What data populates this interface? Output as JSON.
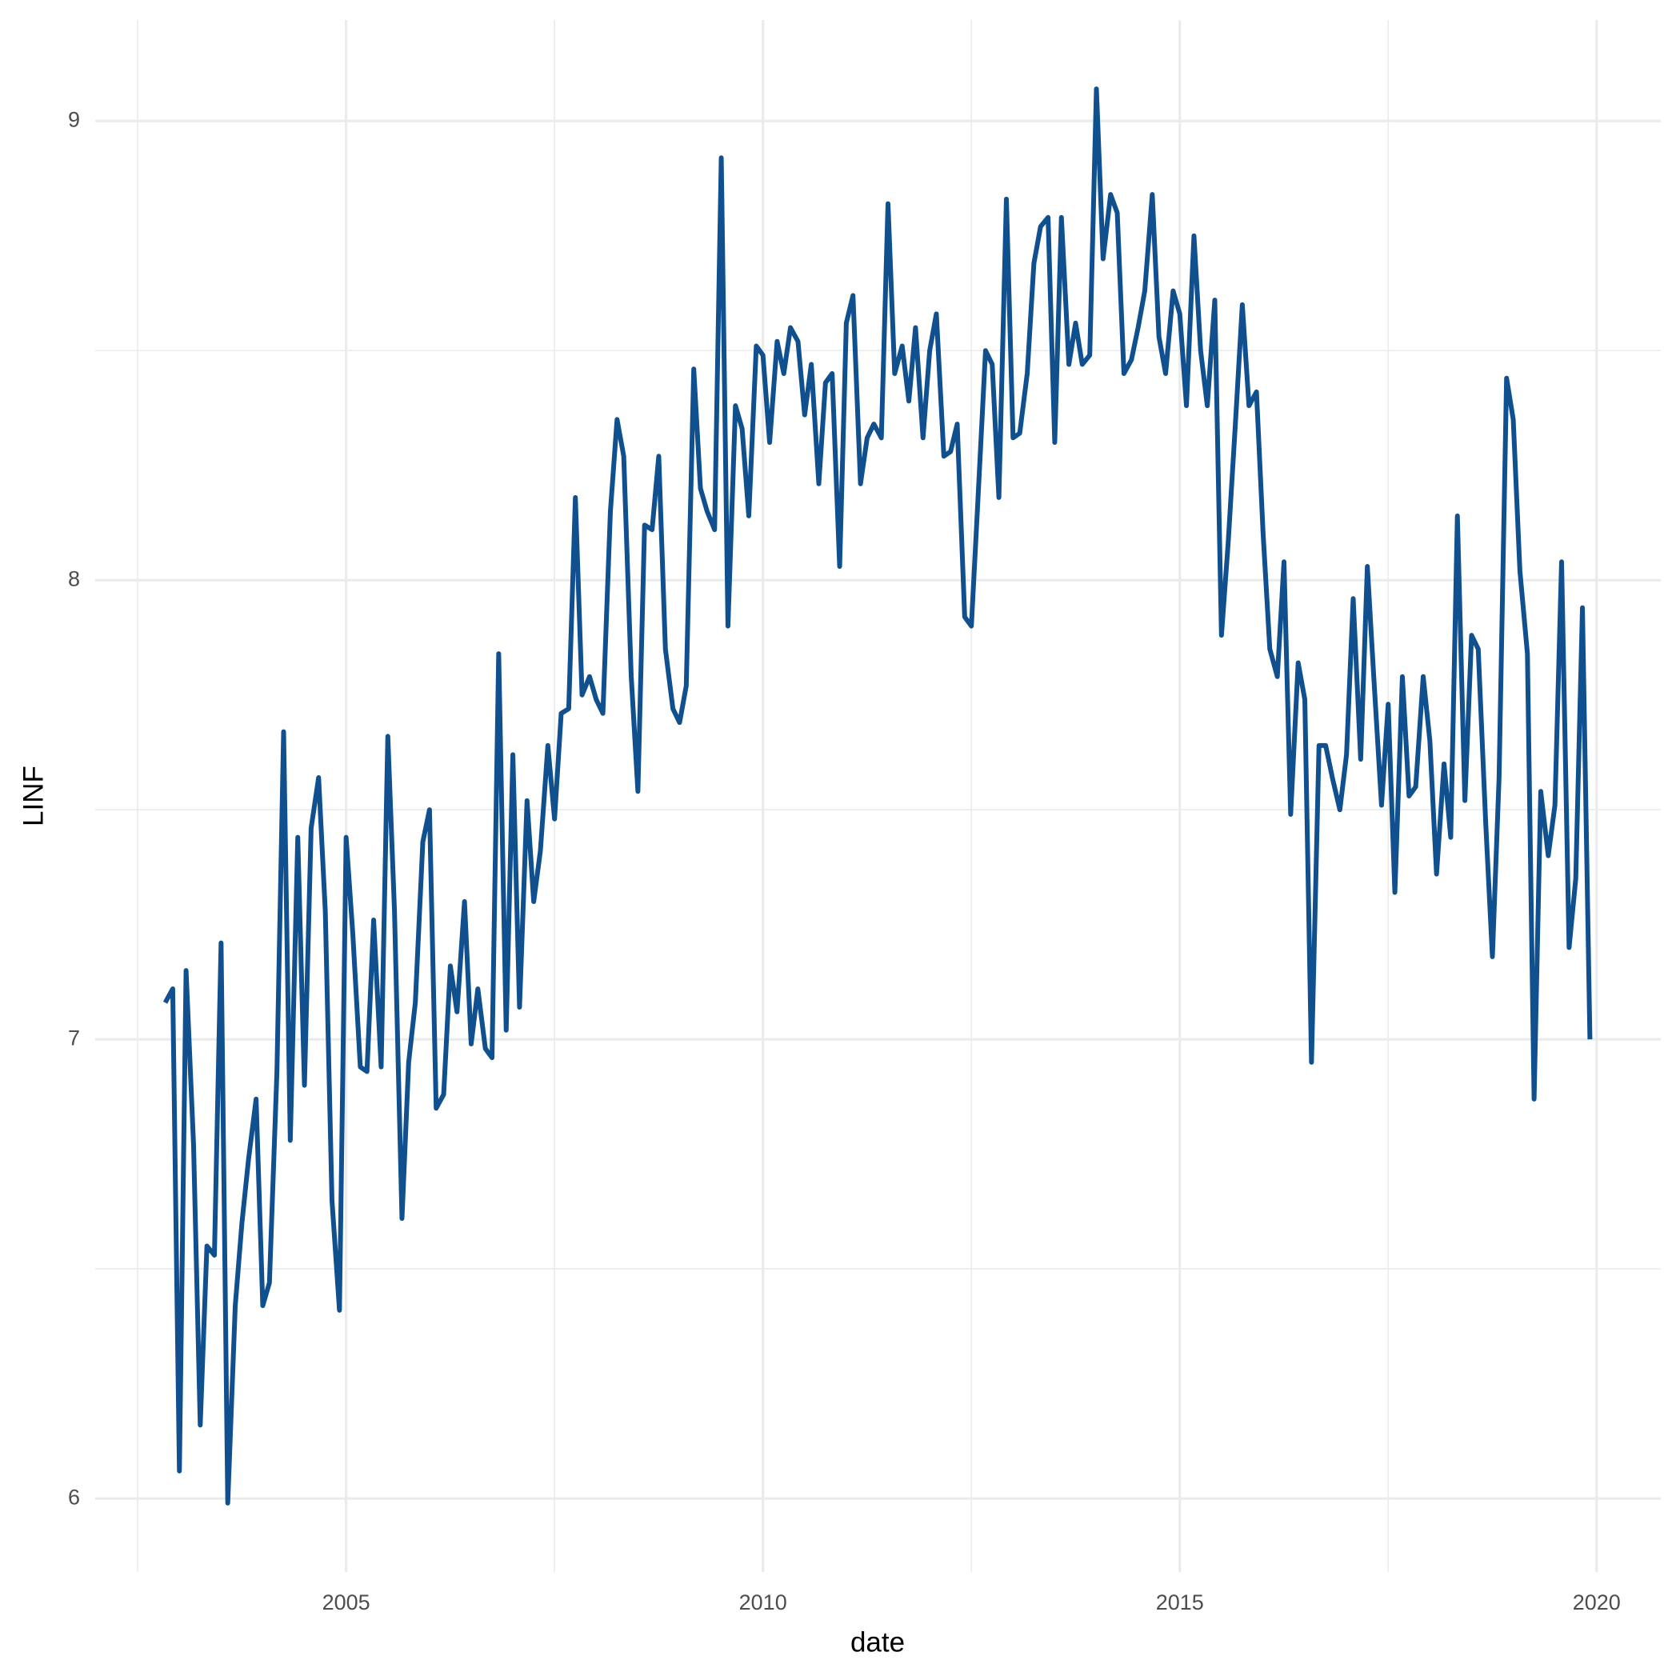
{
  "chart_data": {
    "type": "line",
    "x_label": "date",
    "y_label": "LINF",
    "color": "#10508f",
    "grid": true,
    "xlim": [
      2001.99,
      2020.77
    ],
    "ylim": [
      5.84,
      9.22
    ],
    "xticks": [
      2005,
      2010,
      2015,
      2020
    ],
    "yticks": [
      6,
      7,
      8,
      9
    ],
    "x": [
      2002.83,
      2002.92,
      2003.0,
      2003.08,
      2003.17,
      2003.25,
      2003.33,
      2003.42,
      2003.5,
      2003.58,
      2003.67,
      2003.75,
      2003.83,
      2003.92,
      2004.0,
      2004.08,
      2004.17,
      2004.25,
      2004.33,
      2004.42,
      2004.5,
      2004.58,
      2004.67,
      2004.75,
      2004.83,
      2004.92,
      2005.0,
      2005.08,
      2005.17,
      2005.25,
      2005.33,
      2005.42,
      2005.5,
      2005.58,
      2005.67,
      2005.75,
      2005.83,
      2005.92,
      2006.0,
      2006.08,
      2006.17,
      2006.25,
      2006.33,
      2006.42,
      2006.5,
      2006.58,
      2006.67,
      2006.75,
      2006.83,
      2006.92,
      2007.0,
      2007.08,
      2007.17,
      2007.25,
      2007.33,
      2007.42,
      2007.5,
      2007.58,
      2007.67,
      2007.75,
      2007.83,
      2007.92,
      2008.0,
      2008.08,
      2008.17,
      2008.25,
      2008.33,
      2008.42,
      2008.5,
      2008.58,
      2008.67,
      2008.75,
      2008.83,
      2008.92,
      2009.0,
      2009.08,
      2009.17,
      2009.25,
      2009.33,
      2009.42,
      2009.5,
      2009.58,
      2009.67,
      2009.75,
      2009.83,
      2009.92,
      2010.0,
      2010.08,
      2010.17,
      2010.25,
      2010.33,
      2010.42,
      2010.5,
      2010.58,
      2010.67,
      2010.75,
      2010.83,
      2010.92,
      2011.0,
      2011.08,
      2011.17,
      2011.25,
      2011.33,
      2011.42,
      2011.5,
      2011.58,
      2011.67,
      2011.75,
      2011.83,
      2011.92,
      2012.0,
      2012.08,
      2012.17,
      2012.25,
      2012.33,
      2012.42,
      2012.5,
      2012.58,
      2012.67,
      2012.75,
      2012.83,
      2012.92,
      2013.0,
      2013.08,
      2013.17,
      2013.25,
      2013.33,
      2013.42,
      2013.5,
      2013.58,
      2013.67,
      2013.75,
      2013.83,
      2013.92,
      2014.0,
      2014.08,
      2014.17,
      2014.25,
      2014.33,
      2014.42,
      2014.5,
      2014.58,
      2014.67,
      2014.75,
      2014.83,
      2014.92,
      2015.0,
      2015.08,
      2015.17,
      2015.25,
      2015.33,
      2015.42,
      2015.5,
      2015.58,
      2015.67,
      2015.75,
      2015.83,
      2015.92,
      2016.0,
      2016.08,
      2016.17,
      2016.25,
      2016.33,
      2016.42,
      2016.5,
      2016.58,
      2016.67,
      2016.75,
      2016.83,
      2016.92,
      2017.0,
      2017.08,
      2017.17,
      2017.25,
      2017.33,
      2017.42,
      2017.5,
      2017.58,
      2017.67,
      2017.75,
      2017.83,
      2017.92,
      2018.0,
      2018.08,
      2018.17,
      2018.25,
      2018.33,
      2018.42,
      2018.5,
      2018.58,
      2018.67,
      2018.75,
      2018.83,
      2018.92,
      2019.0,
      2019.08,
      2019.17,
      2019.25,
      2019.33,
      2019.42,
      2019.5,
      2019.58,
      2019.67,
      2019.75,
      2019.83,
      2019.92
    ],
    "values": [
      7.08,
      7.11,
      6.06,
      7.15,
      6.77,
      6.16,
      6.55,
      6.53,
      7.21,
      5.99,
      6.42,
      6.6,
      6.74,
      6.87,
      6.42,
      6.47,
      6.93,
      7.67,
      6.78,
      7.44,
      6.9,
      7.46,
      7.57,
      7.28,
      6.65,
      6.41,
      7.44,
      7.23,
      6.94,
      6.93,
      7.26,
      6.94,
      7.66,
      7.28,
      6.61,
      6.95,
      7.08,
      7.43,
      7.5,
      6.85,
      6.88,
      7.16,
      7.06,
      7.3,
      6.99,
      7.11,
      6.98,
      6.96,
      7.84,
      7.02,
      7.62,
      7.07,
      7.52,
      7.3,
      7.41,
      7.64,
      7.48,
      7.71,
      7.72,
      8.18,
      7.75,
      7.79,
      7.74,
      7.71,
      8.15,
      8.35,
      8.27,
      7.79,
      7.54,
      8.12,
      8.11,
      8.27,
      7.85,
      7.72,
      7.69,
      7.77,
      8.46,
      8.2,
      8.15,
      8.11,
      8.92,
      7.9,
      8.38,
      8.33,
      8.14,
      8.51,
      8.49,
      8.3,
      8.52,
      8.45,
      8.55,
      8.52,
      8.36,
      8.47,
      8.21,
      8.43,
      8.45,
      8.03,
      8.56,
      8.62,
      8.21,
      8.31,
      8.34,
      8.31,
      8.82,
      8.45,
      8.51,
      8.39,
      8.55,
      8.31,
      8.5,
      8.58,
      8.27,
      8.28,
      8.34,
      7.92,
      7.9,
      8.18,
      8.5,
      8.47,
      8.18,
      8.83,
      8.31,
      8.32,
      8.45,
      8.69,
      8.77,
      8.79,
      8.3,
      8.79,
      8.47,
      8.56,
      8.47,
      8.49,
      9.07,
      8.7,
      8.84,
      8.8,
      8.45,
      8.48,
      8.55,
      8.63,
      8.84,
      8.53,
      8.45,
      8.63,
      8.58,
      8.38,
      8.75,
      8.5,
      8.38,
      8.61,
      7.88,
      8.08,
      8.35,
      8.6,
      8.38,
      8.41,
      8.1,
      7.85,
      7.79,
      8.04,
      7.49,
      7.82,
      7.74,
      6.95,
      7.64,
      7.64,
      7.57,
      7.5,
      7.62,
      7.96,
      7.61,
      8.03,
      7.78,
      7.51,
      7.73,
      7.32,
      7.79,
      7.53,
      7.55,
      7.79,
      7.65,
      7.36,
      7.6,
      7.44,
      8.14,
      7.52,
      7.88,
      7.85,
      7.47,
      7.18,
      7.57,
      8.44,
      8.35,
      8.02,
      7.84,
      6.87,
      7.54,
      7.4,
      7.51,
      8.04,
      7.2,
      7.35,
      7.94,
      7.0
    ]
  }
}
